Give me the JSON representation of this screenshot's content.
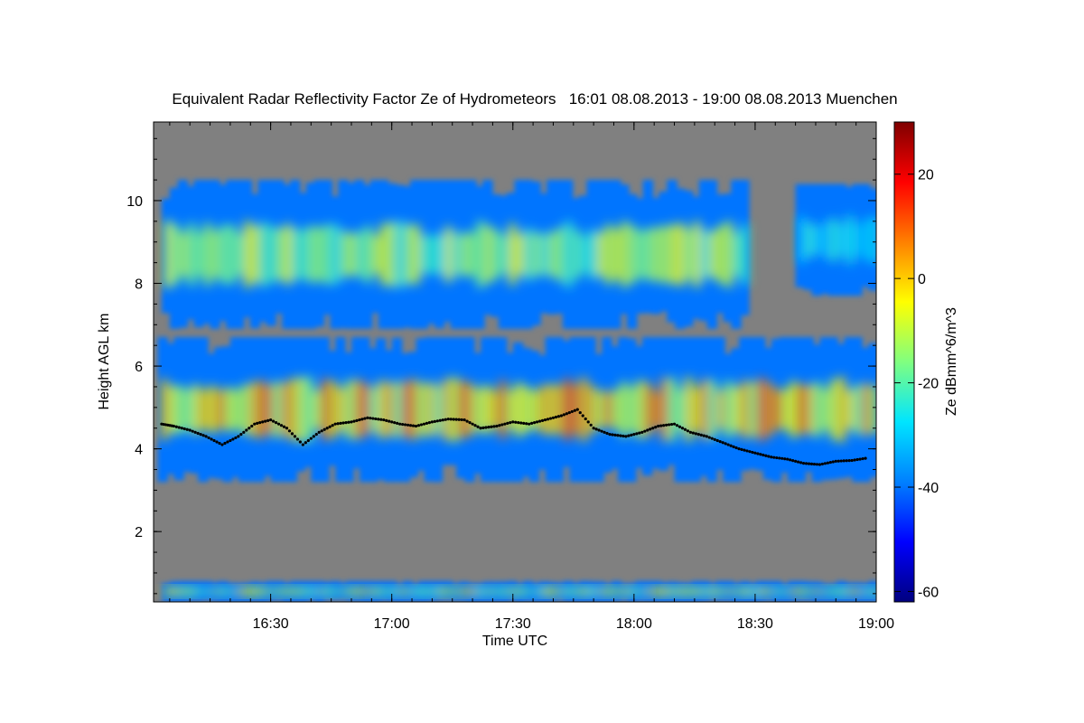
{
  "chart_data": {
    "type": "heatmap",
    "title": "Equivalent Radar Reflectivity Factor Ze of Hydrometeors   16:01 08.08.2013 - 19:00 08.08.2013 Muenchen",
    "xlabel": "Time UTC",
    "ylabel": "Height AGL km",
    "xlim_minutes_utc": [
      961,
      1140
    ],
    "ylim_km": [
      0.3,
      11.9
    ],
    "x_ticks": [
      {
        "value": 990,
        "label": "16:30"
      },
      {
        "value": 1020,
        "label": "17:00"
      },
      {
        "value": 1050,
        "label": "17:30"
      },
      {
        "value": 1080,
        "label": "18:00"
      },
      {
        "value": 1110,
        "label": "18:30"
      },
      {
        "value": 1140,
        "label": "19:00"
      }
    ],
    "y_ticks": [
      2,
      4,
      6,
      8,
      10
    ],
    "colorbar": {
      "label": "Ze dBmm^6/m^3",
      "range": [
        -62,
        30
      ],
      "ticks": [
        -60,
        -40,
        -20,
        0,
        20
      ],
      "colors": [
        "#00007f",
        "#0000ff",
        "#0080ff",
        "#00e5ff",
        "#80ff80",
        "#ffff00",
        "#ff8000",
        "#ff0000",
        "#7f0000"
      ]
    },
    "no_signal_color": "#808080",
    "regions": [
      {
        "name": "upper cirrus layer",
        "x_range": [
          963,
          1108
        ],
        "height_range": [
          6.9,
          10.5
        ],
        "ze_range": [
          -40,
          -5
        ]
      },
      {
        "name": "isolated cirrus patches",
        "x_range": [
          1120,
          1140
        ],
        "height_range": [
          7.7,
          10.4
        ],
        "ze_range": [
          -40,
          -22
        ]
      },
      {
        "name": "mid-level stratiform layer",
        "x_range": [
          962,
          1140
        ],
        "height_range": [
          3.2,
          6.7
        ],
        "ze_range": [
          -40,
          12
        ]
      },
      {
        "name": "near-surface clutter",
        "x_range": [
          963,
          1140
        ],
        "height_range": [
          0.3,
          0.8
        ],
        "ze_range": [
          -40,
          0
        ]
      }
    ],
    "melting_layer": {
      "series_color": "#000000",
      "x": [
        963,
        966,
        970,
        974,
        978,
        982,
        986,
        990,
        994,
        998,
        1002,
        1006,
        1010,
        1014,
        1018,
        1022,
        1026,
        1030,
        1034,
        1038,
        1042,
        1046,
        1050,
        1054,
        1058,
        1062,
        1066,
        1070,
        1074,
        1078,
        1082,
        1086,
        1090,
        1094,
        1098,
        1102,
        1106,
        1110,
        1114,
        1118,
        1122,
        1126,
        1130,
        1134,
        1138
      ],
      "y": [
        4.6,
        4.55,
        4.45,
        4.3,
        4.1,
        4.3,
        4.6,
        4.7,
        4.5,
        4.1,
        4.4,
        4.6,
        4.65,
        4.75,
        4.7,
        4.6,
        4.55,
        4.65,
        4.72,
        4.7,
        4.5,
        4.55,
        4.65,
        4.6,
        4.7,
        4.8,
        4.95,
        4.5,
        4.35,
        4.3,
        4.4,
        4.55,
        4.6,
        4.4,
        4.3,
        4.15,
        4.0,
        3.9,
        3.8,
        3.75,
        3.65,
        3.62,
        3.7,
        3.72,
        3.78
      ]
    }
  }
}
